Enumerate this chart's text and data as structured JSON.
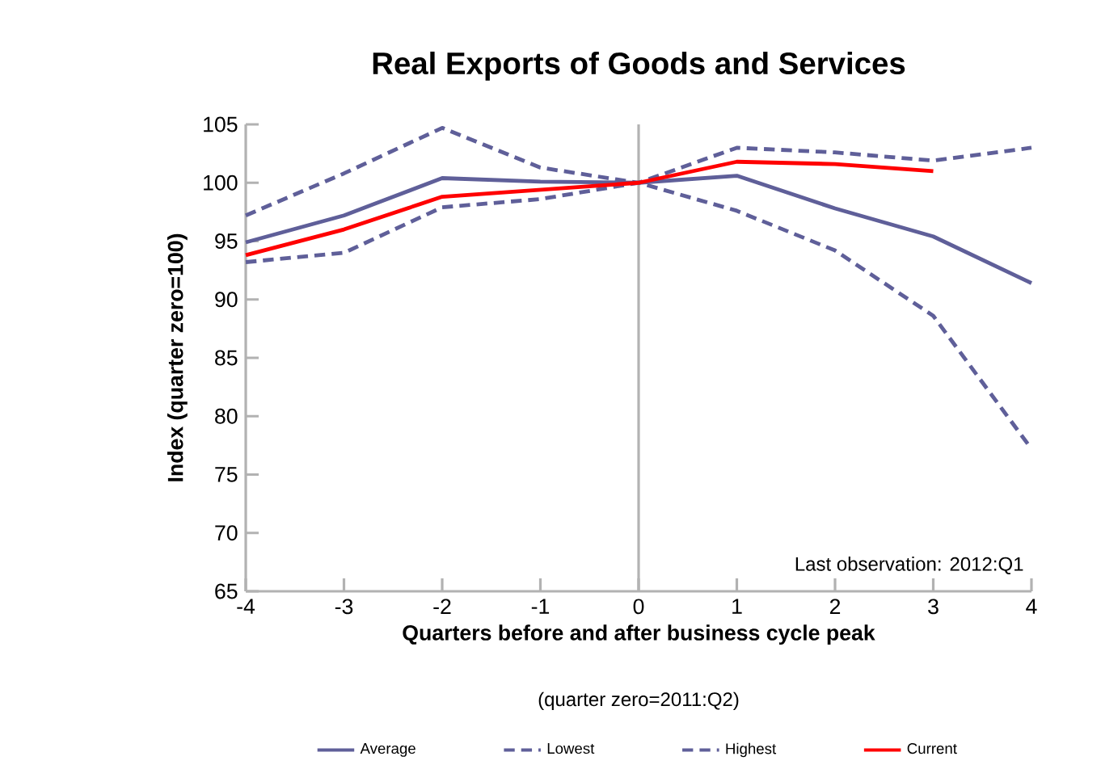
{
  "chart_data": {
    "type": "line",
    "title": "Real Exports of Goods and Services",
    "xlabel": "Quarters before and after business cycle peak",
    "ylabel": "Index (quarter zero=100)",
    "annotations": [
      "Last observation: 2012:Q1",
      "(quarter zero=2011:Q2)"
    ],
    "x": [
      -4,
      -3,
      -2,
      -1,
      0,
      1,
      2,
      3,
      4
    ],
    "series": [
      {
        "name": "Average",
        "color": "#5f5f99",
        "values": [
          94.9,
          97.2,
          100.4,
          100.1,
          100,
          100.6,
          97.8,
          95.4,
          91.4
        ]
      },
      {
        "name": "Lowest",
        "color": "#5f5f99",
        "line_style": "dashed",
        "values": [
          93.2,
          94.0,
          97.9,
          98.6,
          100,
          97.6,
          94.2,
          88.6,
          77.2
        ]
      },
      {
        "name": "Highest",
        "color": "#5f5f99",
        "line_style": "dashed",
        "values": [
          97.2,
          100.8,
          104.7,
          101.3,
          100,
          103.0,
          102.6,
          101.9,
          103.0
        ]
      },
      {
        "name": "Current",
        "color": "#ff0000",
        "values": [
          93.8,
          96.0,
          98.8,
          99.4,
          100,
          101.8,
          101.6,
          101.0,
          null
        ]
      }
    ],
    "xlim": [
      -4,
      4
    ],
    "ylim": [
      65,
      105
    ],
    "xticks": [
      -4,
      -3,
      -2,
      -1,
      0,
      1,
      2,
      3,
      4
    ],
    "yticks": [
      65,
      70,
      75,
      80,
      85,
      90,
      95,
      100,
      105
    ],
    "ref_lines": [
      {
        "axis": "x",
        "value": 0,
        "color": "#b3b3b3"
      }
    ],
    "grid": false,
    "legend": "bottom",
    "marker": "none",
    "line_style": "solid"
  }
}
